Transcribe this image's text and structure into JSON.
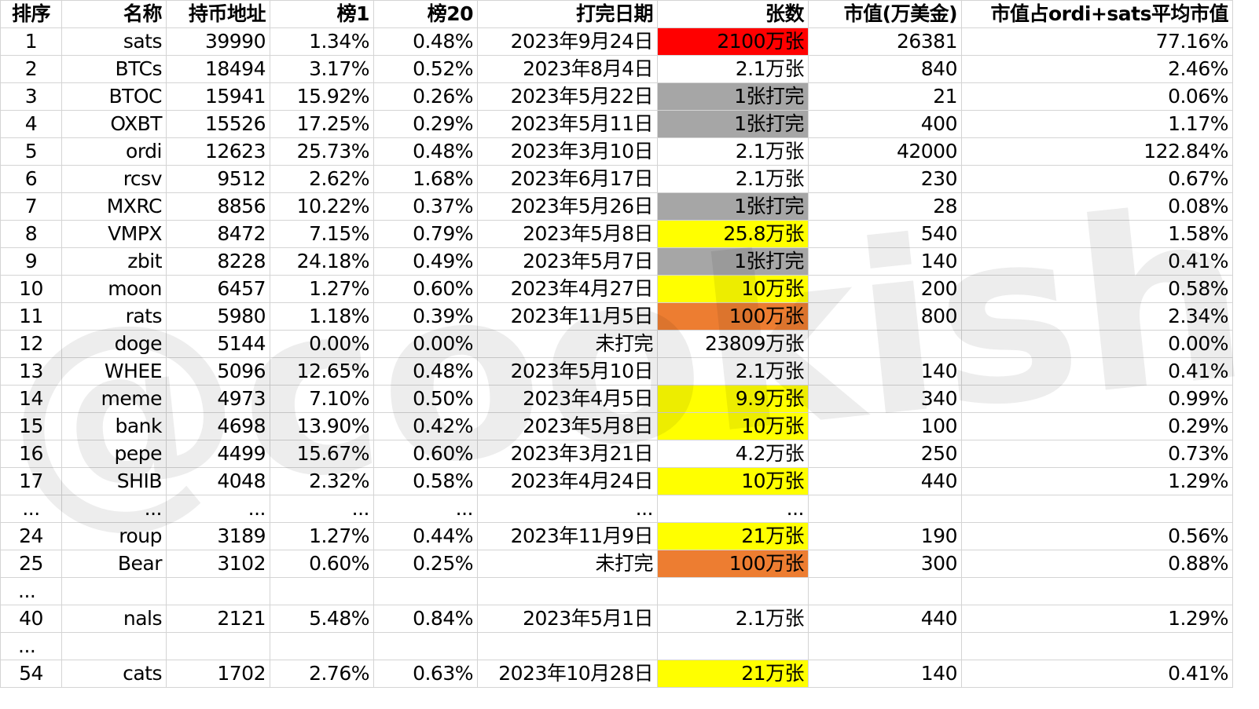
{
  "headers": [
    "排序",
    "名称",
    "持币地址",
    "榜1",
    "榜20",
    "打完日期",
    "张数",
    "市值(万美金)",
    "市值占ordi+sats平均市值"
  ],
  "rows": [
    {
      "cells": [
        "1",
        "sats",
        "39990",
        "1.34%",
        "0.48%",
        "2023年9月24日",
        "2100万张",
        "26381",
        "77.16%"
      ],
      "hl": "red"
    },
    {
      "cells": [
        "2",
        "BTCs",
        "18494",
        "3.17%",
        "0.52%",
        "2023年8月4日",
        "2.1万张",
        "840",
        "2.46%"
      ],
      "hl": ""
    },
    {
      "cells": [
        "3",
        "BTOC",
        "15941",
        "15.92%",
        "0.26%",
        "2023年5月22日",
        "1张打完",
        "21",
        "0.06%"
      ],
      "hl": "gray"
    },
    {
      "cells": [
        "4",
        "OXBT",
        "15526",
        "17.25%",
        "0.29%",
        "2023年5月11日",
        "1张打完",
        "400",
        "1.17%"
      ],
      "hl": "gray"
    },
    {
      "cells": [
        "5",
        "ordi",
        "12623",
        "25.73%",
        "0.48%",
        "2023年3月10日",
        "2.1万张",
        "42000",
        "122.84%"
      ],
      "hl": ""
    },
    {
      "cells": [
        "6",
        "rcsv",
        "9512",
        "2.62%",
        "1.68%",
        "2023年6月17日",
        "2.1万张",
        "230",
        "0.67%"
      ],
      "hl": ""
    },
    {
      "cells": [
        "7",
        "MXRC",
        "8856",
        "10.22%",
        "0.37%",
        "2023年5月26日",
        "1张打完",
        "28",
        "0.08%"
      ],
      "hl": "gray"
    },
    {
      "cells": [
        "8",
        "VMPX",
        "8472",
        "7.15%",
        "0.79%",
        "2023年5月8日",
        "25.8万张",
        "540",
        "1.58%"
      ],
      "hl": "yellow"
    },
    {
      "cells": [
        "9",
        "zbit",
        "8228",
        "24.18%",
        "0.49%",
        "2023年5月7日",
        "1张打完",
        "140",
        "0.41%"
      ],
      "hl": "gray"
    },
    {
      "cells": [
        "10",
        "moon",
        "6457",
        "1.27%",
        "0.60%",
        "2023年4月27日",
        "10万张",
        "200",
        "0.58%"
      ],
      "hl": "yellow"
    },
    {
      "cells": [
        "11",
        "rats",
        "5980",
        "1.18%",
        "0.39%",
        "2023年11月5日",
        "100万张",
        "800",
        "2.34%"
      ],
      "hl": "orange"
    },
    {
      "cells": [
        "12",
        "doge",
        "5144",
        "0.00%",
        "0.00%",
        "未打完",
        "23809万张",
        "",
        "0.00%"
      ],
      "hl": ""
    },
    {
      "cells": [
        "13",
        "WHEE",
        "5096",
        "12.65%",
        "0.48%",
        "2023年5月10日",
        "2.1万张",
        "140",
        "0.41%"
      ],
      "hl": ""
    },
    {
      "cells": [
        "14",
        "meme",
        "4973",
        "7.10%",
        "0.50%",
        "2023年4月5日",
        "9.9万张",
        "340",
        "0.99%"
      ],
      "hl": "yellow"
    },
    {
      "cells": [
        "15",
        "bank",
        "4698",
        "13.90%",
        "0.42%",
        "2023年5月8日",
        "10万张",
        "100",
        "0.29%"
      ],
      "hl": "yellow"
    },
    {
      "cells": [
        "16",
        "pepe",
        "4499",
        "15.67%",
        "0.60%",
        "2023年3月21日",
        "4.2万张",
        "250",
        "0.73%"
      ],
      "hl": ""
    },
    {
      "cells": [
        "17",
        "SHIB",
        "4048",
        "2.32%",
        "0.58%",
        "2023年4月24日",
        "10万张",
        "440",
        "1.29%"
      ],
      "hl": "yellow"
    },
    {
      "cells": [
        "...",
        "...",
        "...",
        "...",
        "...",
        "...",
        "...",
        "",
        ""
      ],
      "hl": ""
    },
    {
      "cells": [
        "24",
        "roup",
        "3189",
        "1.27%",
        "0.44%",
        "2023年11月9日",
        "21万张",
        "190",
        "0.56%"
      ],
      "hl": "yellow"
    },
    {
      "cells": [
        "25",
        "Bear",
        "3102",
        "0.60%",
        "0.25%",
        "未打完",
        "100万张",
        "300",
        "0.88%"
      ],
      "hl": "orange"
    },
    {
      "cells": [
        "...",
        "",
        "",
        "",
        "",
        "",
        "",
        "",
        ""
      ],
      "hl": ""
    },
    {
      "cells": [
        "40",
        "nals",
        "2121",
        "5.48%",
        "0.84%",
        "2023年5月1日",
        "2.1万张",
        "440",
        "1.29%"
      ],
      "hl": ""
    },
    {
      "cells": [
        "...",
        "",
        "",
        "",
        "",
        "",
        "",
        "",
        ""
      ],
      "hl": ""
    },
    {
      "cells": [
        "54",
        "cats",
        "1702",
        "2.76%",
        "0.63%",
        "2023年10月28日",
        "21万张",
        "140",
        "0.41%"
      ],
      "hl": "yellow"
    }
  ],
  "watermark": "@cookish",
  "colors": {
    "red": "#ff0000",
    "gray": "#a6a6a6",
    "yellow": "#ffff00",
    "orange": "#ed7d31",
    "grid": "#d4d4d4"
  }
}
